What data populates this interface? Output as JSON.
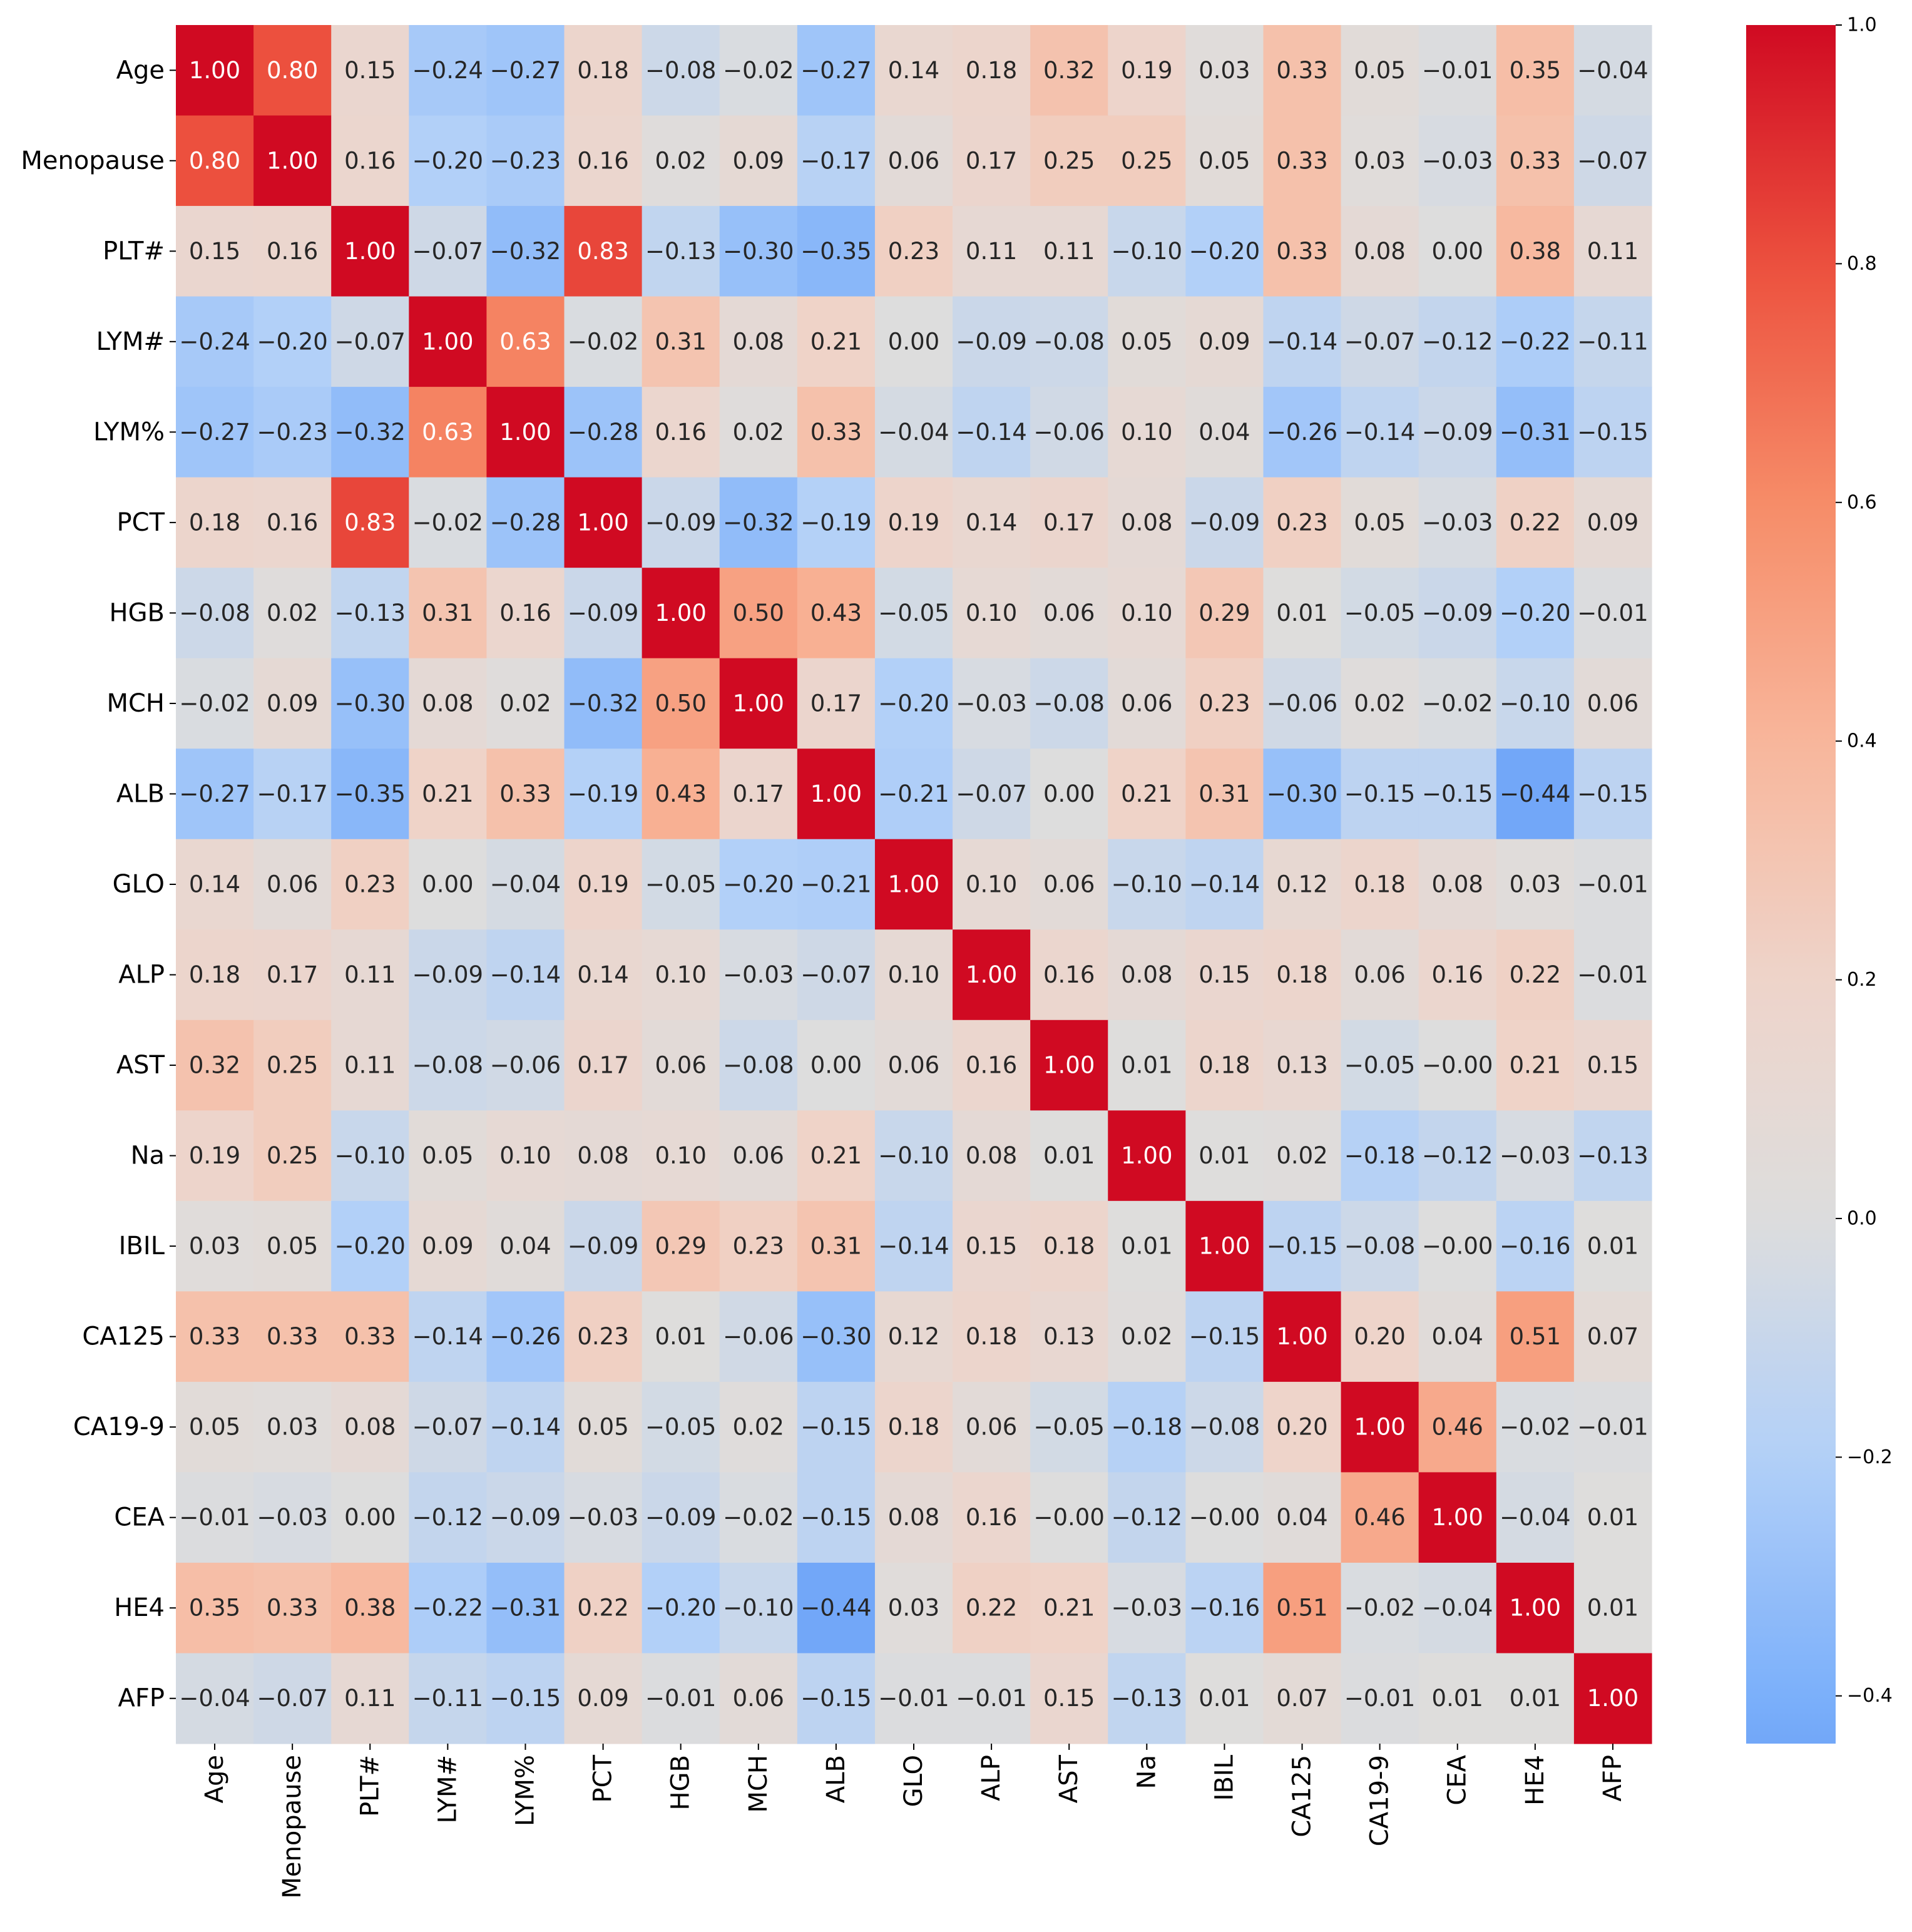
{
  "chart_data": {
    "type": "heatmap",
    "title": "",
    "xlabel": "",
    "ylabel": "",
    "labels": [
      "Age",
      "Menopause",
      "PLT#",
      "LYM#",
      "LYM%",
      "PCT",
      "HGB",
      "MCH",
      "ALB",
      "GLO",
      "ALP",
      "AST",
      "Na",
      "IBIL",
      "CA125",
      "CA19-9",
      "CEA",
      "HE4",
      "AFP"
    ],
    "cell_text": [
      [
        "1.00",
        "0.80",
        "0.15",
        "−0.24",
        "−0.27",
        "0.18",
        "−0.08",
        "−0.02",
        "−0.27",
        "0.14",
        "0.18",
        "0.32",
        "0.19",
        "0.03",
        "0.33",
        "0.05",
        "−0.01",
        "0.35",
        "−0.04"
      ],
      [
        "0.80",
        "1.00",
        "0.16",
        "−0.20",
        "−0.23",
        "0.16",
        "0.02",
        "0.09",
        "−0.17",
        "0.06",
        "0.17",
        "0.25",
        "0.25",
        "0.05",
        "0.33",
        "0.03",
        "−0.03",
        "0.33",
        "−0.07"
      ],
      [
        "0.15",
        "0.16",
        "1.00",
        "−0.07",
        "−0.32",
        "0.83",
        "−0.13",
        "−0.30",
        "−0.35",
        "0.23",
        "0.11",
        "0.11",
        "−0.10",
        "−0.20",
        "0.33",
        "0.08",
        "0.00",
        "0.38",
        "0.11"
      ],
      [
        "−0.24",
        "−0.20",
        "−0.07",
        "1.00",
        "0.63",
        "−0.02",
        "0.31",
        "0.08",
        "0.21",
        "0.00",
        "−0.09",
        "−0.08",
        "0.05",
        "0.09",
        "−0.14",
        "−0.07",
        "−0.12",
        "−0.22",
        "−0.11"
      ],
      [
        "−0.27",
        "−0.23",
        "−0.32",
        "0.63",
        "1.00",
        "−0.28",
        "0.16",
        "0.02",
        "0.33",
        "−0.04",
        "−0.14",
        "−0.06",
        "0.10",
        "0.04",
        "−0.26",
        "−0.14",
        "−0.09",
        "−0.31",
        "−0.15"
      ],
      [
        "0.18",
        "0.16",
        "0.83",
        "−0.02",
        "−0.28",
        "1.00",
        "−0.09",
        "−0.32",
        "−0.19",
        "0.19",
        "0.14",
        "0.17",
        "0.08",
        "−0.09",
        "0.23",
        "0.05",
        "−0.03",
        "0.22",
        "0.09"
      ],
      [
        "−0.08",
        "0.02",
        "−0.13",
        "0.31",
        "0.16",
        "−0.09",
        "1.00",
        "0.50",
        "0.43",
        "−0.05",
        "0.10",
        "0.06",
        "0.10",
        "0.29",
        "0.01",
        "−0.05",
        "−0.09",
        "−0.20",
        "−0.01"
      ],
      [
        "−0.02",
        "0.09",
        "−0.30",
        "0.08",
        "0.02",
        "−0.32",
        "0.50",
        "1.00",
        "0.17",
        "−0.20",
        "−0.03",
        "−0.08",
        "0.06",
        "0.23",
        "−0.06",
        "0.02",
        "−0.02",
        "−0.10",
        "0.06"
      ],
      [
        "−0.27",
        "−0.17",
        "−0.35",
        "0.21",
        "0.33",
        "−0.19",
        "0.43",
        "0.17",
        "1.00",
        "−0.21",
        "−0.07",
        "0.00",
        "0.21",
        "0.31",
        "−0.30",
        "−0.15",
        "−0.15",
        "−0.44",
        "−0.15"
      ],
      [
        "0.14",
        "0.06",
        "0.23",
        "0.00",
        "−0.04",
        "0.19",
        "−0.05",
        "−0.20",
        "−0.21",
        "1.00",
        "0.10",
        "0.06",
        "−0.10",
        "−0.14",
        "0.12",
        "0.18",
        "0.08",
        "0.03",
        "−0.01"
      ],
      [
        "0.18",
        "0.17",
        "0.11",
        "−0.09",
        "−0.14",
        "0.14",
        "0.10",
        "−0.03",
        "−0.07",
        "0.10",
        "1.00",
        "0.16",
        "0.08",
        "0.15",
        "0.18",
        "0.06",
        "0.16",
        "0.22",
        "−0.01"
      ],
      [
        "0.32",
        "0.25",
        "0.11",
        "−0.08",
        "−0.06",
        "0.17",
        "0.06",
        "−0.08",
        "0.00",
        "0.06",
        "0.16",
        "1.00",
        "0.01",
        "0.18",
        "0.13",
        "−0.05",
        "−0.00",
        "0.21",
        "0.15"
      ],
      [
        "0.19",
        "0.25",
        "−0.10",
        "0.05",
        "0.10",
        "0.08",
        "0.10",
        "0.06",
        "0.21",
        "−0.10",
        "0.08",
        "0.01",
        "1.00",
        "0.01",
        "0.02",
        "−0.18",
        "−0.12",
        "−0.03",
        "−0.13"
      ],
      [
        "0.03",
        "0.05",
        "−0.20",
        "0.09",
        "0.04",
        "−0.09",
        "0.29",
        "0.23",
        "0.31",
        "−0.14",
        "0.15",
        "0.18",
        "0.01",
        "1.00",
        "−0.15",
        "−0.08",
        "−0.00",
        "−0.16",
        "0.01"
      ],
      [
        "0.33",
        "0.33",
        "0.33",
        "−0.14",
        "−0.26",
        "0.23",
        "0.01",
        "−0.06",
        "−0.30",
        "0.12",
        "0.18",
        "0.13",
        "0.02",
        "−0.15",
        "1.00",
        "0.20",
        "0.04",
        "0.51",
        "0.07"
      ],
      [
        "0.05",
        "0.03",
        "0.08",
        "−0.07",
        "−0.14",
        "0.05",
        "−0.05",
        "0.02",
        "−0.15",
        "0.18",
        "0.06",
        "−0.05",
        "−0.18",
        "−0.08",
        "0.20",
        "1.00",
        "0.46",
        "−0.02",
        "−0.01"
      ],
      [
        "−0.01",
        "−0.03",
        "0.00",
        "−0.12",
        "−0.09",
        "−0.03",
        "−0.09",
        "−0.02",
        "−0.15",
        "0.08",
        "0.16",
        "−0.00",
        "−0.12",
        "−0.00",
        "0.04",
        "0.46",
        "1.00",
        "−0.04",
        "0.01"
      ],
      [
        "0.35",
        "0.33",
        "0.38",
        "−0.22",
        "−0.31",
        "0.22",
        "−0.20",
        "−0.10",
        "−0.44",
        "0.03",
        "0.22",
        "0.21",
        "−0.03",
        "−0.16",
        "0.51",
        "−0.02",
        "−0.04",
        "1.00",
        "0.01"
      ],
      [
        "−0.04",
        "−0.07",
        "0.11",
        "−0.11",
        "−0.15",
        "0.09",
        "−0.01",
        "0.06",
        "−0.15",
        "−0.01",
        "−0.01",
        "0.15",
        "−0.13",
        "0.01",
        "0.07",
        "−0.01",
        "0.01",
        "0.01",
        "1.00"
      ]
    ],
    "colormap": "coolwarm",
    "vmin": -0.44,
    "vmax": 1.0,
    "center": 0.0,
    "colorbar": {
      "ticks": [
        1.0,
        0.8,
        0.6,
        0.4,
        0.2,
        0.0,
        -0.2,
        -0.4
      ],
      "tick_labels": [
        "1.0",
        "0.8",
        "0.6",
        "0.4",
        "0.2",
        "0.0",
        "−0.2",
        "−0.4"
      ],
      "placement": "right"
    }
  },
  "colors": {
    "cold_end": "#3b4cc0",
    "neutral": "#dddddd",
    "hot_end": "#b40426",
    "text_dark": "#262626",
    "text_light": "#ffffff"
  }
}
